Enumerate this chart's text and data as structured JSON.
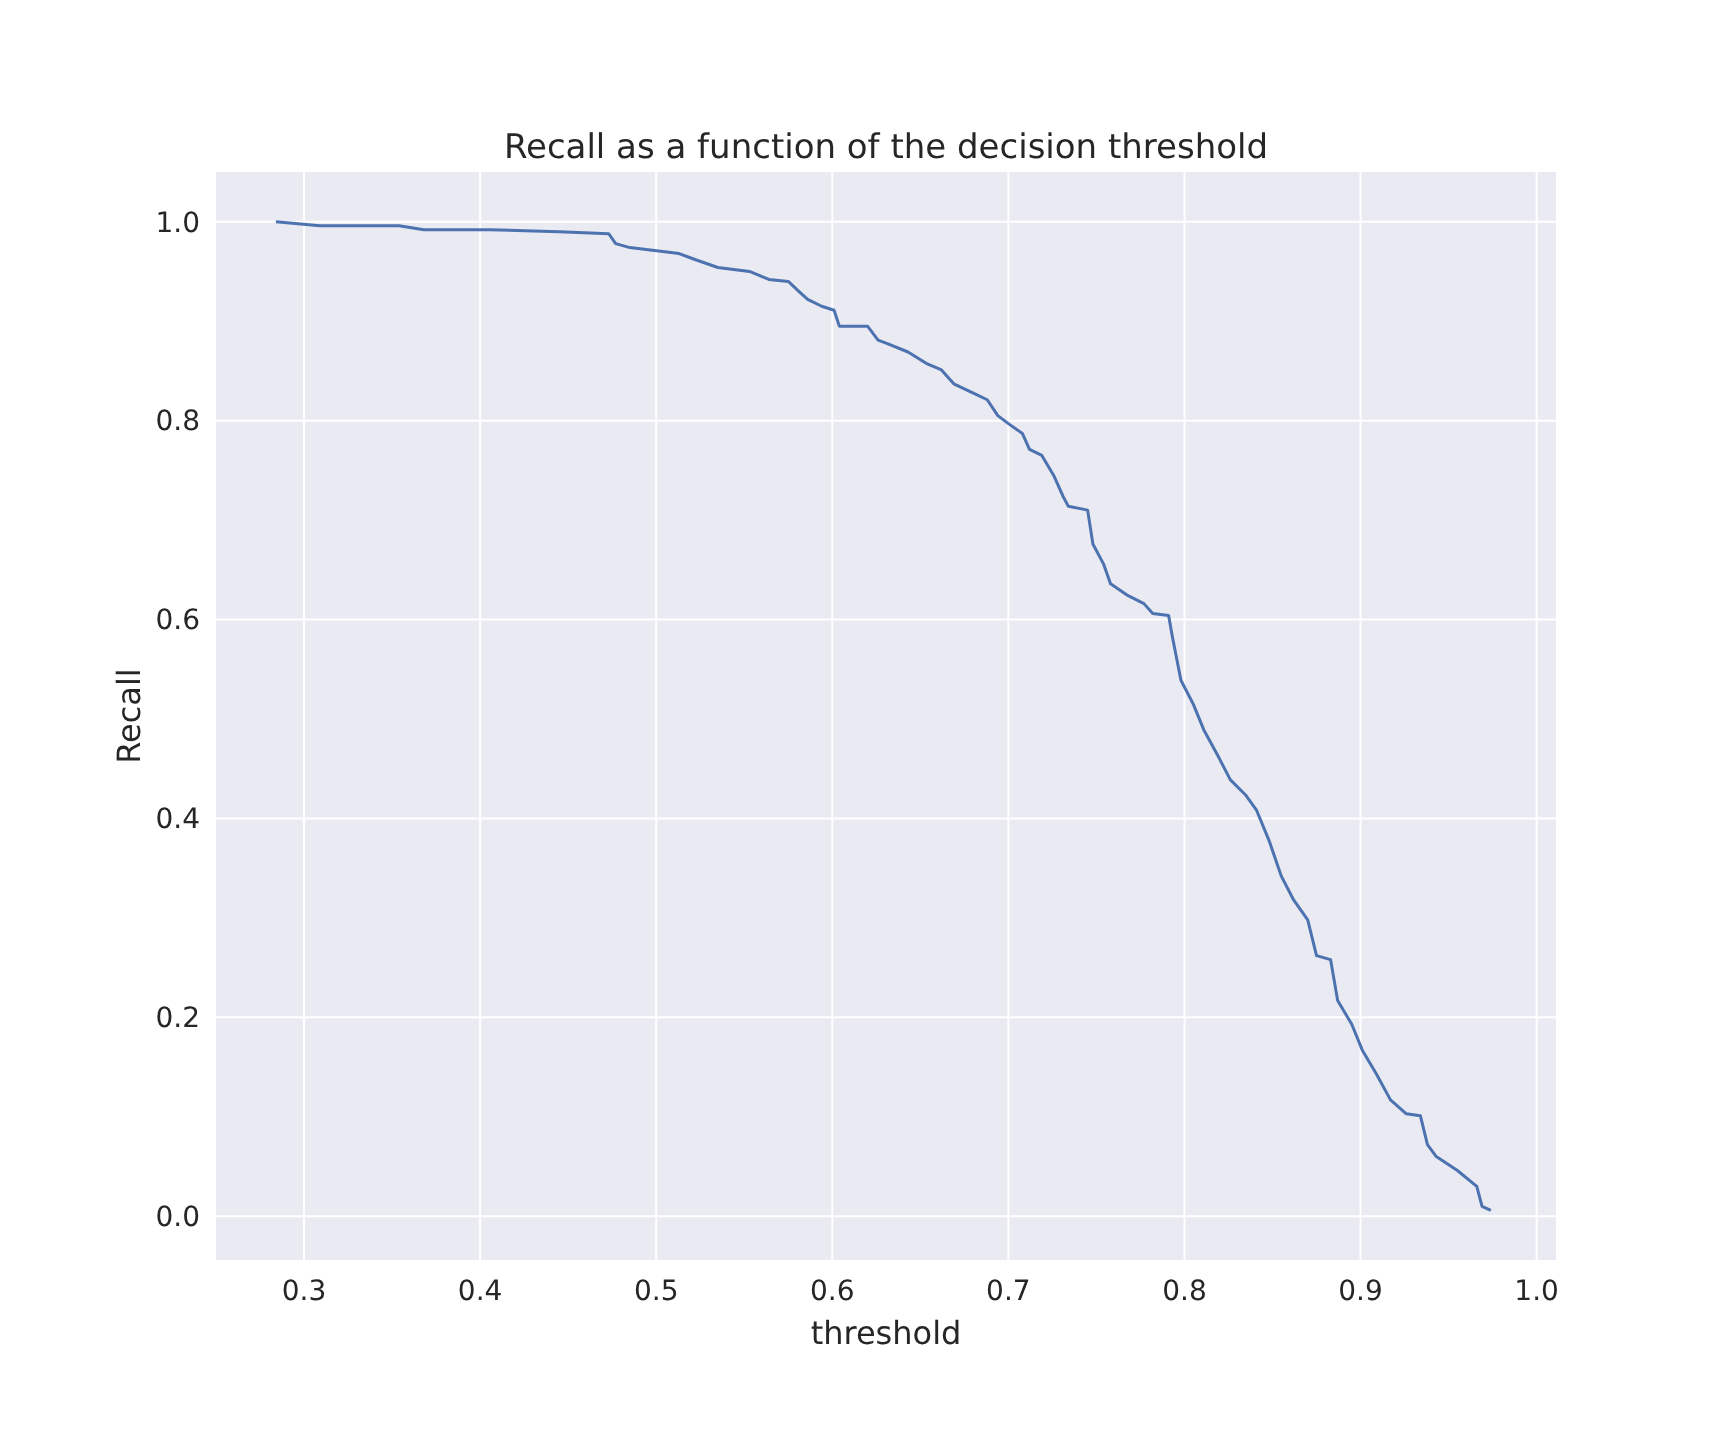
{
  "chart_data": {
    "type": "line",
    "title": "Recall as a function of the decision threshold",
    "xlabel": "threshold",
    "ylabel": "Recall",
    "x": [
      0.284,
      0.309,
      0.354,
      0.368,
      0.405,
      0.445,
      0.473,
      0.477,
      0.485,
      0.513,
      0.522,
      0.535,
      0.553,
      0.564,
      0.575,
      0.581,
      0.586,
      0.594,
      0.601,
      0.604,
      0.62,
      0.626,
      0.632,
      0.643,
      0.654,
      0.662,
      0.669,
      0.681,
      0.688,
      0.694,
      0.7,
      0.708,
      0.712,
      0.719,
      0.726,
      0.731,
      0.734,
      0.745,
      0.748,
      0.754,
      0.758,
      0.768,
      0.777,
      0.782,
      0.791,
      0.793,
      0.798,
      0.805,
      0.811,
      0.819,
      0.826,
      0.835,
      0.841,
      0.848,
      0.855,
      0.862,
      0.87,
      0.875,
      0.883,
      0.887,
      0.895,
      0.901,
      0.909,
      0.917,
      0.926,
      0.934,
      0.938,
      0.943,
      0.955,
      0.966,
      0.969,
      0.974
    ],
    "series": [
      {
        "color": "#4c72b0",
        "values": [
          1.0,
          0.996,
          0.996,
          0.992,
          0.992,
          0.99,
          0.988,
          0.978,
          0.974,
          0.968,
          0.962,
          0.954,
          0.95,
          0.942,
          0.94,
          0.93,
          0.922,
          0.915,
          0.911,
          0.895,
          0.895,
          0.881,
          0.877,
          0.869,
          0.857,
          0.851,
          0.837,
          0.827,
          0.821,
          0.805,
          0.797,
          0.787,
          0.771,
          0.765,
          0.744,
          0.724,
          0.714,
          0.71,
          0.676,
          0.656,
          0.636,
          0.624,
          0.616,
          0.606,
          0.604,
          0.584,
          0.539,
          0.515,
          0.489,
          0.463,
          0.439,
          0.423,
          0.408,
          0.378,
          0.342,
          0.318,
          0.298,
          0.262,
          0.258,
          0.217,
          0.193,
          0.167,
          0.143,
          0.117,
          0.103,
          0.101,
          0.072,
          0.06,
          0.046,
          0.03,
          0.01,
          0.006
        ]
      }
    ],
    "xlim": [
      0.25,
      1.011
    ],
    "ylim": [
      -0.044,
      1.05
    ],
    "xticks": [
      {
        "value": 0.3,
        "label": "0.3"
      },
      {
        "value": 0.4,
        "label": "0.4"
      },
      {
        "value": 0.5,
        "label": "0.5"
      },
      {
        "value": 0.6,
        "label": "0.6"
      },
      {
        "value": 0.7,
        "label": "0.7"
      },
      {
        "value": 0.8,
        "label": "0.8"
      },
      {
        "value": 0.9,
        "label": "0.9"
      },
      {
        "value": 1.0,
        "label": "1.0"
      }
    ],
    "yticks": [
      {
        "value": 0.0,
        "label": "0.0"
      },
      {
        "value": 0.2,
        "label": "0.2"
      },
      {
        "value": 0.4,
        "label": "0.4"
      },
      {
        "value": 0.6,
        "label": "0.6"
      },
      {
        "value": 0.8,
        "label": "0.8"
      },
      {
        "value": 1.0,
        "label": "1.0"
      }
    ],
    "grid": true,
    "marker": "none",
    "line_style": "solid"
  }
}
